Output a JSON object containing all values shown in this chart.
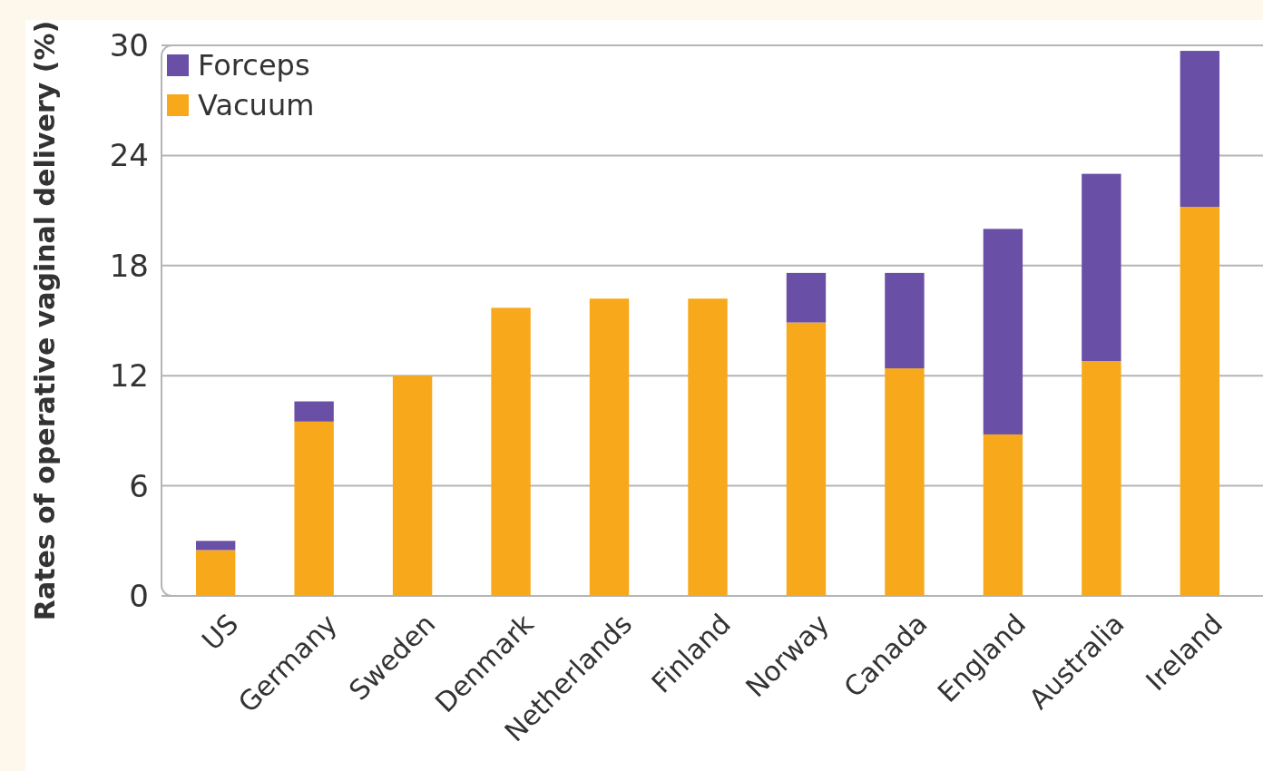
{
  "chart_data": {
    "type": "bar",
    "stacked": true,
    "ylabel": "Rates of operative vaginal delivery (%)",
    "categories": [
      "US",
      "Germany",
      "Sweden",
      "Denmark",
      "Netherlands",
      "Finland",
      "Norway",
      "Canada",
      "England",
      "Australia",
      "Ireland"
    ],
    "series": [
      {
        "name": "Vacuum",
        "color": "#f7a81b",
        "values": [
          2.5,
          9.5,
          12.0,
          15.7,
          16.2,
          16.2,
          14.9,
          12.4,
          8.8,
          12.8,
          21.2
        ]
      },
      {
        "name": "Forceps",
        "color": "#6a4fa6",
        "values": [
          0.5,
          1.1,
          0,
          0,
          0,
          0,
          2.7,
          5.2,
          11.2,
          10.2,
          8.5
        ]
      }
    ],
    "ylim": [
      0,
      30
    ],
    "yticks": [
      0,
      6,
      12,
      18,
      24,
      30
    ],
    "grid": "y",
    "legend": "top left"
  }
}
